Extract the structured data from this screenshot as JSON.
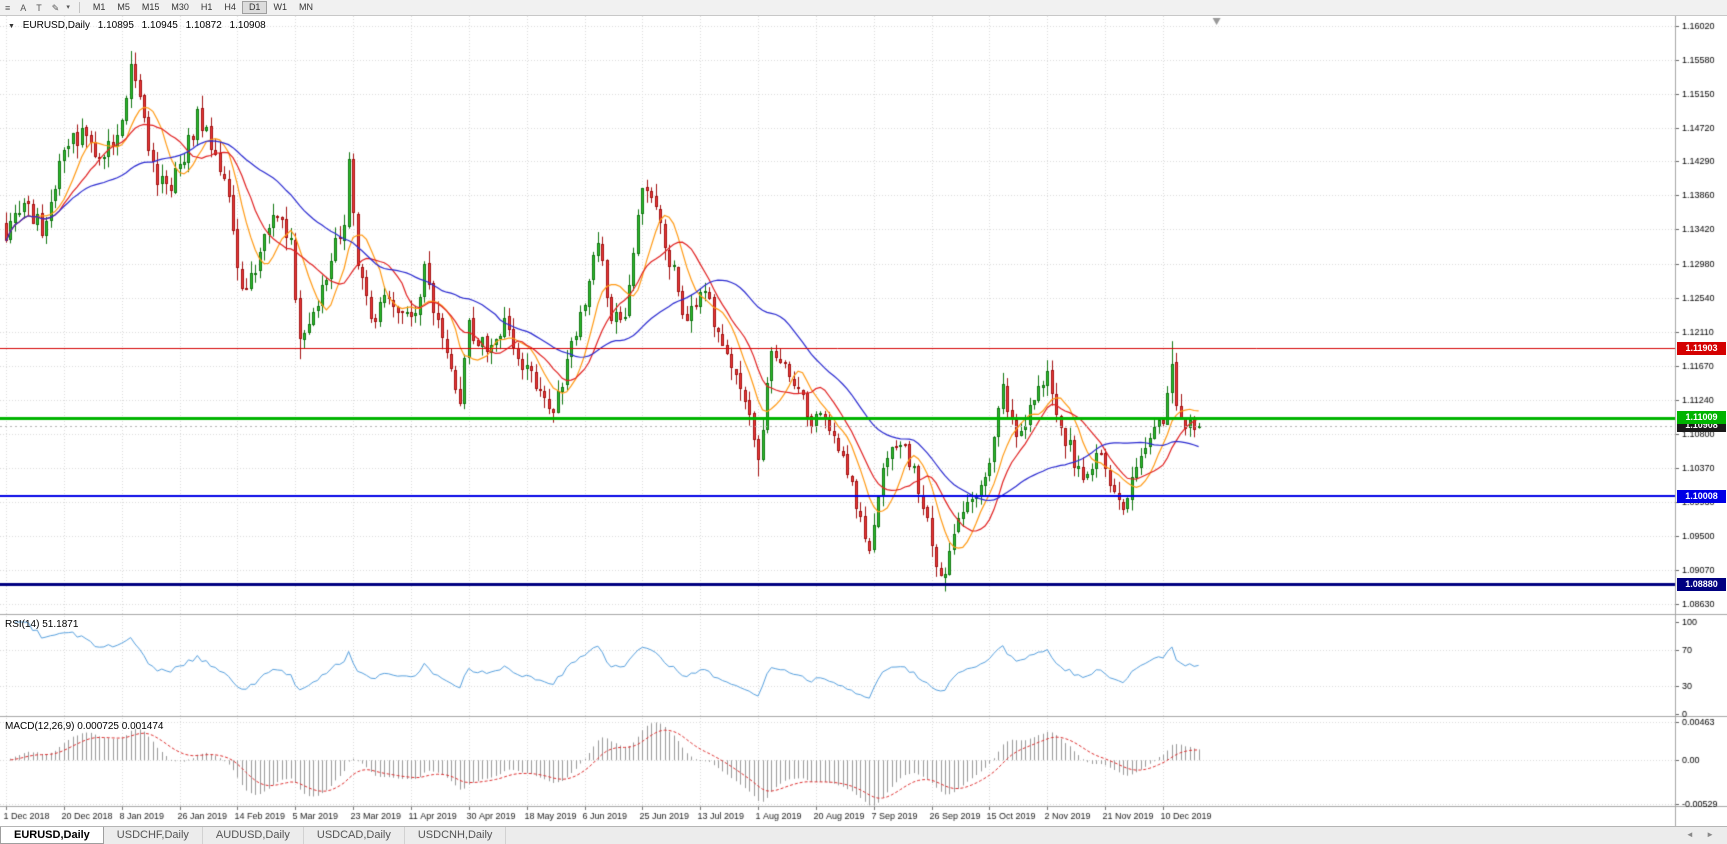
{
  "toolbar": {
    "icons": [
      {
        "name": "menu-icon",
        "glyph": "≡"
      },
      {
        "name": "cursor-tool-icon",
        "glyph": "A"
      },
      {
        "name": "text-tool-icon",
        "glyph": "T"
      },
      {
        "name": "draw-tool-icon",
        "glyph": "✎"
      },
      {
        "name": "chevron-down-icon",
        "glyph": "▾"
      }
    ],
    "timeframes": [
      "M1",
      "M5",
      "M15",
      "M30",
      "H1",
      "H4",
      "D1",
      "W1",
      "MN"
    ],
    "active_timeframe": "D1"
  },
  "chart": {
    "symbol": "EURUSD,Daily",
    "marker_glyph": "▼",
    "ohlc": {
      "open": "1.10895",
      "high": "1.10945",
      "low": "1.10872",
      "close": "1.10908"
    }
  },
  "chart_data": {
    "type": "candlestick",
    "symbol": "EURUSD",
    "timeframe": "Daily",
    "num_candles": 269,
    "candles_per_label": 13,
    "seed": 9,
    "price_axis_labels": [
      "1.16020",
      "1.15580",
      "1.15150",
      "1.14720",
      "1.14290",
      "1.13860",
      "1.13420",
      "1.12980",
      "1.12540",
      "1.12110",
      "1.11670",
      "1.11240",
      "1.10800",
      "1.10370",
      "1.09930",
      "1.09500",
      "1.09070",
      "1.08630"
    ],
    "date_labels": [
      "1 Dec 2018",
      "20 Dec 2018",
      "8 Jan 2019",
      "26 Jan 2019",
      "14 Feb 2019",
      "5 Mar 2019",
      "23 Mar 2019",
      "11 Apr 2019",
      "30 Apr 2019",
      "18 May 2019",
      "6 Jun 2019",
      "25 Jun 2019",
      "13 Jul 2019",
      "1 Aug 2019",
      "20 Aug 2019",
      "7 Sep 2019",
      "26 Sep 2019",
      "15 Oct 2019",
      "2 Nov 2019",
      "21 Nov 2019",
      "10 Dec 2019"
    ],
    "anchors": [
      [
        0,
        1.1335
      ],
      [
        4,
        1.137
      ],
      [
        8,
        1.1345
      ],
      [
        13,
        1.144
      ],
      [
        17,
        1.1465
      ],
      [
        21,
        1.143
      ],
      [
        25,
        1.147
      ],
      [
        28,
        1.1545
      ],
      [
        30,
        1.15
      ],
      [
        33,
        1.142
      ],
      [
        36,
        1.139
      ],
      [
        39,
        1.142
      ],
      [
        43,
        1.1485
      ],
      [
        47,
        1.144
      ],
      [
        50,
        1.138
      ],
      [
        52,
        1.13
      ],
      [
        54,
        1.1255
      ],
      [
        57,
        1.132
      ],
      [
        61,
        1.1365
      ],
      [
        64,
        1.132
      ],
      [
        66,
        1.1195
      ],
      [
        69,
        1.124
      ],
      [
        73,
        1.13
      ],
      [
        76,
        1.1355
      ],
      [
        77,
        1.143
      ],
      [
        79,
        1.13
      ],
      [
        82,
        1.123
      ],
      [
        86,
        1.125
      ],
      [
        91,
        1.1225
      ],
      [
        94,
        1.129
      ],
      [
        98,
        1.119
      ],
      [
        102,
        1.1125
      ],
      [
        104,
        1.1215
      ],
      [
        108,
        1.119
      ],
      [
        112,
        1.1225
      ],
      [
        115,
        1.118
      ],
      [
        117,
        1.116
      ],
      [
        121,
        1.1135
      ],
      [
        123,
        1.111
      ],
      [
        126,
        1.117
      ],
      [
        130,
        1.1255
      ],
      [
        133,
        1.133
      ],
      [
        136,
        1.1215
      ],
      [
        139,
        1.124
      ],
      [
        143,
        1.1395
      ],
      [
        146,
        1.136
      ],
      [
        150,
        1.1285
      ],
      [
        153,
        1.1225
      ],
      [
        156,
        1.127
      ],
      [
        160,
        1.1215
      ],
      [
        164,
        1.115
      ],
      [
        167,
        1.1115
      ],
      [
        169,
        1.1045
      ],
      [
        172,
        1.1195
      ],
      [
        176,
        1.1165
      ],
      [
        180,
        1.1105
      ],
      [
        183,
        1.1095
      ],
      [
        186,
        1.107
      ],
      [
        189,
        1.1035
      ],
      [
        192,
        1.0965
      ],
      [
        194,
        1.0935
      ],
      [
        197,
        1.103
      ],
      [
        200,
        1.107
      ],
      [
        203,
        1.1045
      ],
      [
        206,
        1.0995
      ],
      [
        208,
        1.093
      ],
      [
        211,
        1.0895
      ],
      [
        214,
        1.0985
      ],
      [
        218,
        1.0995
      ],
      [
        221,
        1.1035
      ],
      [
        224,
        1.1135
      ],
      [
        227,
        1.1085
      ],
      [
        230,
        1.111
      ],
      [
        234,
        1.1155
      ],
      [
        238,
        1.1075
      ],
      [
        242,
        1.1025
      ],
      [
        245,
        1.1055
      ],
      [
        248,
        1.1015
      ],
      [
        251,
        1.099
      ],
      [
        254,
        1.104
      ],
      [
        257,
        1.1085
      ],
      [
        260,
        1.1095
      ],
      [
        262,
        1.117
      ],
      [
        263,
        1.112
      ],
      [
        265,
        1.1085
      ],
      [
        268,
        1.1091
      ]
    ],
    "spikes": [
      [
        28,
        "high",
        1.157
      ],
      [
        66,
        "low",
        1.1176
      ],
      [
        169,
        "low",
        1.1026
      ],
      [
        211,
        "low",
        1.0879
      ],
      [
        262,
        "high",
        1.1199
      ]
    ],
    "hlines": [
      {
        "value": 1.11903,
        "label": "1.11903",
        "color": "#d40000",
        "width": 1
      },
      {
        "value": 1.11009,
        "label": "1.11009",
        "color": "#00b400",
        "width": 3
      },
      {
        "value": 1.10008,
        "label": "1.10008",
        "color": "#0000e6",
        "width": 2
      },
      {
        "value": 1.0888,
        "label": "1.08880",
        "color": "#000080",
        "width": 3
      }
    ],
    "current_price": "1.10908",
    "current_tag_color": "#1a1a1a",
    "ma": [
      {
        "period": 8,
        "color": "#ff9913"
      },
      {
        "period": 13,
        "color": "#e02020"
      },
      {
        "period": 34,
        "color": "#2a2ad0"
      }
    ],
    "rsi": {
      "label": "RSI(14) 51.1871",
      "period": 14,
      "color": "#569fdd",
      "levels": [
        "100",
        "70",
        "30",
        "0"
      ],
      "level_lines": [
        70,
        30
      ]
    },
    "macd": {
      "label": "MACD(12,26,9) 0.000725 0.001474",
      "levels": [
        "0.00463",
        "0.00",
        "-0.00529"
      ],
      "range": [
        -0.00529,
        0.00463
      ],
      "hist_color": "#9a9a9a",
      "signal_color": "#dd3030"
    },
    "colors": {
      "grid": "#d9d9d9",
      "up_fill": "#2fbf2f",
      "up_border": "#117711",
      "down_fill": "#ee3b3b",
      "down_border": "#a31212",
      "axis_text": "#000000"
    }
  },
  "tabs": {
    "items": [
      "EURUSD,Daily",
      "USDCHF,Daily",
      "AUDUSD,Daily",
      "USDCAD,Daily",
      "USDCNH,Daily"
    ],
    "active": 0,
    "scroll_left_glyph": "◄",
    "scroll_right_glyph": "►"
  }
}
